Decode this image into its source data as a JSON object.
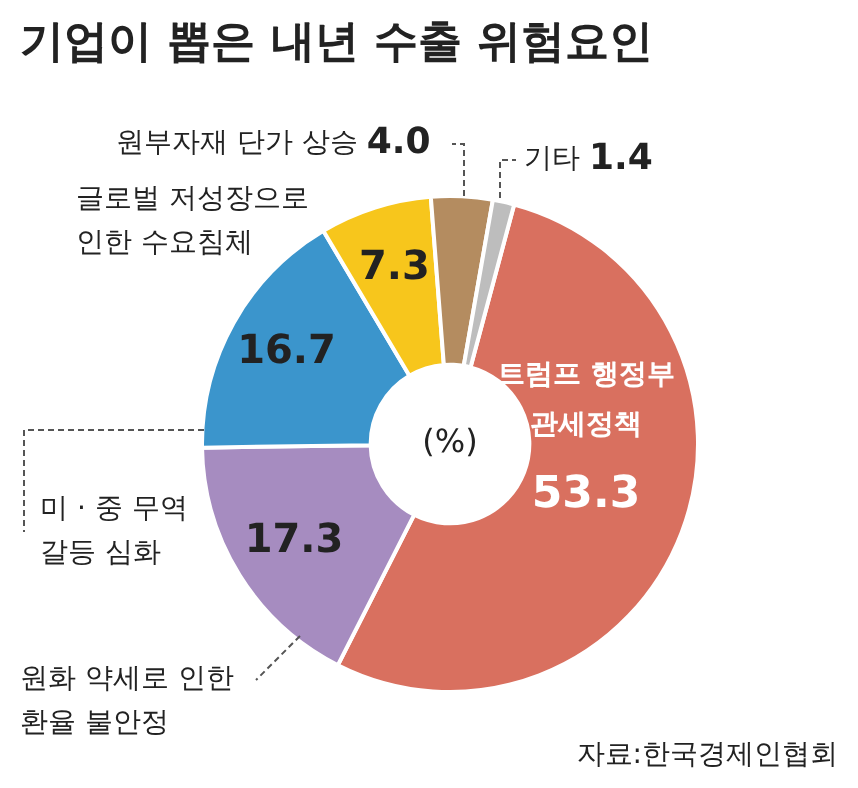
{
  "chart_data": {
    "type": "donut",
    "title": "기업이 뽑은 내년 수출 위험요인",
    "categories": [
      "트럼프 행정부 관세정책",
      "원화 약세로 인한 환율 불안정",
      "미 · 중 무역 갈등 심화",
      "글로벌 저성장으로 인한 수요침체",
      "원부자재 단가 상승",
      "기타"
    ],
    "values": [
      53.3,
      17.3,
      16.7,
      7.3,
      4.0,
      1.4
    ],
    "value_labels": [
      "53.3",
      "17.3",
      "16.7",
      "7.3",
      "4.0",
      "1.4"
    ],
    "colors": [
      "#d9705f",
      "#a68cc0",
      "#3b95cc",
      "#f7c61c",
      "#b48c60",
      "#bdbdbd"
    ],
    "annotations": [
      "(%)",
      "자료:한국경제인협회"
    ],
    "legend": false
  }
}
